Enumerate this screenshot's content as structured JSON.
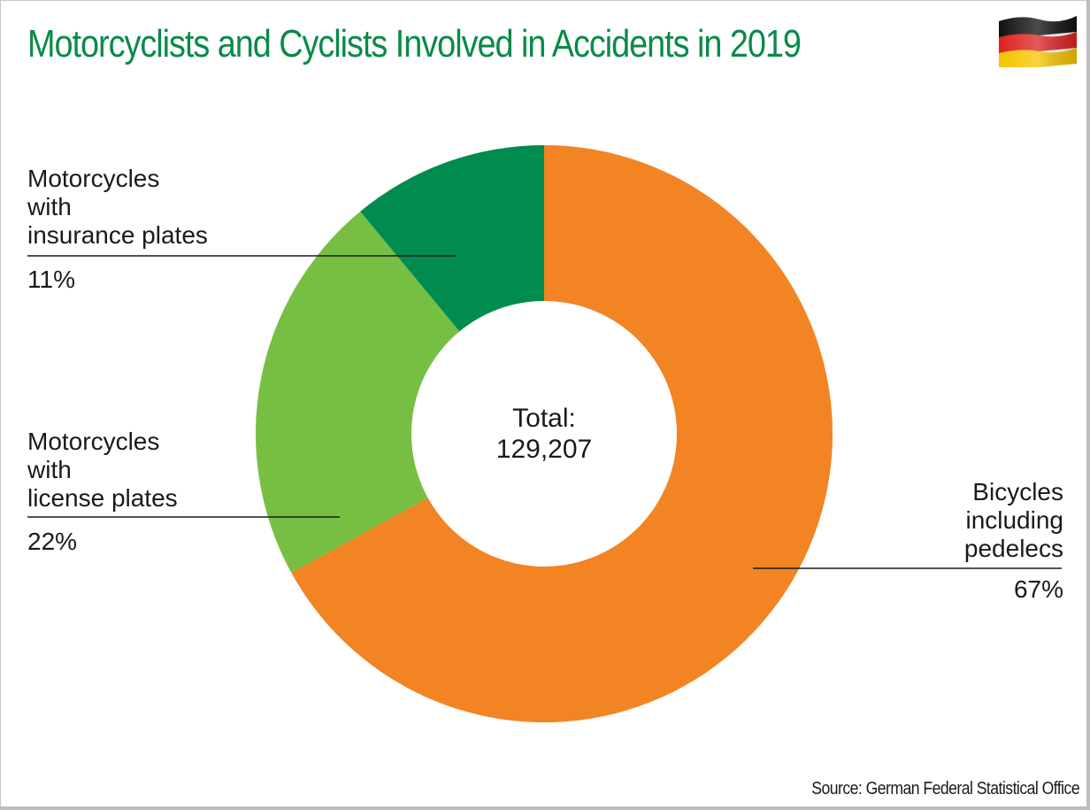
{
  "title": "Motorcyclists and Cyclists Involved in Accidents in 2019",
  "flag": {
    "icon": "germany-flag-icon",
    "colors": [
      "#111111",
      "#dd2222",
      "#f5c400"
    ]
  },
  "center": {
    "line1": "Total:",
    "line2": "129,207"
  },
  "source": "Source: German Federal Statistical Office",
  "chart_data": {
    "type": "pie",
    "donut": true,
    "total": 129207,
    "slices": [
      {
        "label": "Bicycles\nincluding\npedelecs",
        "value": 67,
        "display": "67%",
        "color": "#f28424"
      },
      {
        "label": "Motorcycles\nwith\nlicense plates",
        "value": 22,
        "display": "22%",
        "color": "#76bf43"
      },
      {
        "label": "Motorcycles\nwith\ninsurance plates",
        "value": 11,
        "display": "11%",
        "color": "#008c4e"
      }
    ]
  }
}
